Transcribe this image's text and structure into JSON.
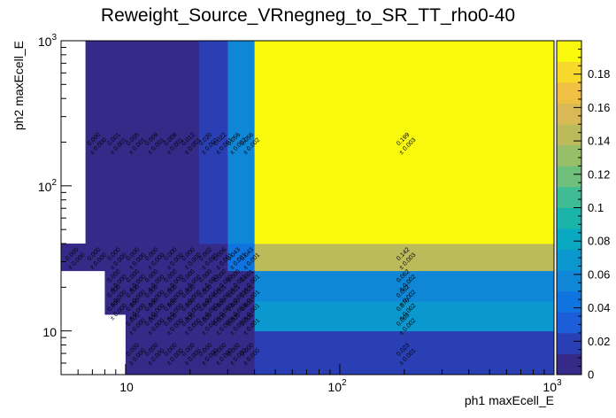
{
  "chart_data": {
    "type": "heatmap",
    "title": "Reweight_Source_VRnegneg_to_SR_TT_rho0-40",
    "xlabel": "ph1 maxEcell_E",
    "ylabel": "ph2 maxEcell_E",
    "x_scale": "log",
    "y_scale": "log",
    "xlim": [
      5,
      1000
    ],
    "ylim": [
      5,
      1000
    ],
    "x_tick_labels": [
      "10",
      "10²",
      "10³"
    ],
    "y_tick_labels": [
      "10",
      "10²",
      "10³"
    ],
    "x_edges": [
      5,
      6.5,
      8,
      10,
      12,
      15,
      18,
      22,
      26,
      30,
      35,
      40,
      1000
    ],
    "y_edges": [
      5,
      10,
      13,
      16,
      20,
      26,
      40,
      1000
    ],
    "z_range": [
      0,
      0.2
    ],
    "colorbar_ticks": [
      "0",
      "0.02",
      "0.04",
      "0.06",
      "0.08",
      "0.1",
      "0.12",
      "0.14",
      "0.16",
      "0.18"
    ],
    "cells": [
      {
        "ix": 3,
        "iy": 0,
        "value": 0.0,
        "error": 0.0,
        "label": "0.000",
        "err_label": "± 0.000"
      },
      {
        "ix": 4,
        "iy": 0,
        "value": 0.0,
        "error": 0.0,
        "label": "0.000",
        "err_label": "± 0.000"
      },
      {
        "ix": 5,
        "iy": 0,
        "value": 0.0,
        "error": 0.0,
        "label": "0.000",
        "err_label": "± 0.000"
      },
      {
        "ix": 6,
        "iy": 0,
        "value": 0.0,
        "error": 0.0,
        "label": "0.000",
        "err_label": "± 0.000"
      },
      {
        "ix": 7,
        "iy": 0,
        "value": 0.0,
        "error": 0.0,
        "label": "0.000",
        "err_label": "± 0.000"
      },
      {
        "ix": 8,
        "iy": 0,
        "value": 0.0,
        "error": 0.0,
        "label": "0.000",
        "err_label": "± 0.000"
      },
      {
        "ix": 9,
        "iy": 0,
        "value": 0.0,
        "error": 0.0,
        "label": "0.000",
        "err_label": "± 0.000"
      },
      {
        "ix": 10,
        "iy": 0,
        "value": 0.0,
        "error": 0.0,
        "label": "0.000",
        "err_label": "± 0.000"
      },
      {
        "ix": 11,
        "iy": 0,
        "value": 0.023,
        "error": 0.001,
        "label": "0.023",
        "err_label": "± 0.001"
      },
      {
        "ix": 3,
        "iy": 1,
        "value": 0.0,
        "error": 0.0,
        "label": "0.000",
        "err_label": "± 0.000"
      },
      {
        "ix": 4,
        "iy": 1,
        "value": 0.0,
        "error": 0.0,
        "label": "0.000",
        "err_label": "± 0.000"
      },
      {
        "ix": 5,
        "iy": 1,
        "value": 0.0,
        "error": 0.0,
        "label": "0.000",
        "err_label": "± 0.000"
      },
      {
        "ix": 6,
        "iy": 1,
        "value": 0.0,
        "error": 0.0,
        "label": "0.000",
        "err_label": "± 0.000"
      },
      {
        "ix": 7,
        "iy": 1,
        "value": 0.0,
        "error": 0.0,
        "label": "0.000",
        "err_label": "± 0.000"
      },
      {
        "ix": 8,
        "iy": 1,
        "value": 0.0,
        "error": 0.0,
        "label": "0.000",
        "err_label": "± 0.000"
      },
      {
        "ix": 9,
        "iy": 1,
        "value": 0.0,
        "error": 0.0,
        "label": "0.000",
        "err_label": "± 0.000"
      },
      {
        "ix": 10,
        "iy": 1,
        "value": 0.0,
        "error": 0.001,
        "label": "0.000",
        "err_label": "± 0.001"
      },
      {
        "ix": 11,
        "iy": 1,
        "value": 0.063,
        "error": 0.002,
        "label": "0.063",
        "err_label": "± 0.002"
      },
      {
        "ix": 2,
        "iy": 2,
        "value": 0.0,
        "error": 0.0,
        "label": "0.000",
        "err_label": "± 0.000"
      },
      {
        "ix": 3,
        "iy": 2,
        "value": 0.0,
        "error": 0.0,
        "label": "0.000",
        "err_label": "± 0.000"
      },
      {
        "ix": 4,
        "iy": 2,
        "value": 0.0,
        "error": 0.0,
        "label": "0.000",
        "err_label": "± 0.000"
      },
      {
        "ix": 5,
        "iy": 2,
        "value": 0.0,
        "error": 0.0,
        "label": "0.000",
        "err_label": "± 0.000"
      },
      {
        "ix": 6,
        "iy": 2,
        "value": 0.0,
        "error": 0.0,
        "label": "0.000",
        "err_label": "± 0.000"
      },
      {
        "ix": 7,
        "iy": 2,
        "value": 0.0,
        "error": 0.0,
        "label": "0.000",
        "err_label": "± 0.000"
      },
      {
        "ix": 8,
        "iy": 2,
        "value": 0.0,
        "error": 0.0,
        "label": "0.000",
        "err_label": "± 0.000"
      },
      {
        "ix": 9,
        "iy": 2,
        "value": 0.0,
        "error": 0.001,
        "label": "0.000",
        "err_label": "± 0.001"
      },
      {
        "ix": 10,
        "iy": 2,
        "value": 0.001,
        "error": 0.001,
        "label": "0.001",
        "err_label": "± 0.001"
      },
      {
        "ix": 11,
        "iy": 2,
        "value": 0.07,
        "error": 0.002,
        "label": "0.070",
        "err_label": "± 0.002"
      },
      {
        "ix": 2,
        "iy": 3,
        "value": 0.0,
        "error": 0.0,
        "label": "0.000",
        "err_label": "± 0.000"
      },
      {
        "ix": 3,
        "iy": 3,
        "value": 0.0,
        "error": 0.0,
        "label": "0.000",
        "err_label": "± 0.000"
      },
      {
        "ix": 4,
        "iy": 3,
        "value": 0.0,
        "error": 0.0,
        "label": "0.000",
        "err_label": "± 0.000"
      },
      {
        "ix": 5,
        "iy": 3,
        "value": 0.0,
        "error": 0.0,
        "label": "0.000",
        "err_label": "± 0.000"
      },
      {
        "ix": 6,
        "iy": 3,
        "value": 0.0,
        "error": 0.0,
        "label": "0.000",
        "err_label": "± 0.000"
      },
      {
        "ix": 7,
        "iy": 3,
        "value": 0.0,
        "error": 0.0,
        "label": "0.000",
        "err_label": "± 0.000"
      },
      {
        "ix": 8,
        "iy": 3,
        "value": 0.001,
        "error": 0.001,
        "label": "0.001",
        "err_label": "± 0.001"
      },
      {
        "ix": 9,
        "iy": 3,
        "value": 0.001,
        "error": 0.001,
        "label": "0.001",
        "err_label": "± 0.001"
      },
      {
        "ix": 10,
        "iy": 3,
        "value": 0.001,
        "error": 0.001,
        "label": "0.001",
        "err_label": "± 0.001"
      },
      {
        "ix": 11,
        "iy": 3,
        "value": 0.062,
        "error": 0.002,
        "label": "0.062",
        "err_label": "± 0.002"
      },
      {
        "ix": 2,
        "iy": 4,
        "value": 0.0,
        "error": 0.0,
        "label": "0.000",
        "err_label": "± 0.000"
      },
      {
        "ix": 3,
        "iy": 4,
        "value": 0.0,
        "error": 0.0,
        "label": "0.000",
        "err_label": "± 0.000"
      },
      {
        "ix": 4,
        "iy": 4,
        "value": 0.0,
        "error": 0.0,
        "label": "0.000",
        "err_label": "± 0.000"
      },
      {
        "ix": 5,
        "iy": 4,
        "value": 0.0,
        "error": 0.0,
        "label": "0.000",
        "err_label": "± 0.000"
      },
      {
        "ix": 6,
        "iy": 4,
        "value": 0.0,
        "error": 0.0,
        "label": "0.000",
        "err_label": "± 0.000"
      },
      {
        "ix": 7,
        "iy": 4,
        "value": 0.0,
        "error": 0.0,
        "label": "0.000",
        "err_label": "± 0.000"
      },
      {
        "ix": 8,
        "iy": 4,
        "value": 0.0,
        "error": 0.0,
        "label": "0.000",
        "err_label": "± 0.000"
      },
      {
        "ix": 9,
        "iy": 4,
        "value": 0.0,
        "error": 0.001,
        "label": "0.000",
        "err_label": "± 0.001"
      },
      {
        "ix": 10,
        "iy": 4,
        "value": 0.001,
        "error": 0.001,
        "label": "0.001",
        "err_label": "± 0.001"
      },
      {
        "ix": 11,
        "iy": 4,
        "value": 0.062,
        "error": 0.002,
        "label": "0.062",
        "err_label": "± 0.002"
      },
      {
        "ix": 0,
        "iy": 5,
        "value": 0.0,
        "error": 0.0,
        "label": "0.000",
        "err_label": "± 0.000"
      },
      {
        "ix": 1,
        "iy": 5,
        "value": 0.0,
        "error": 0.0,
        "label": "0.000",
        "err_label": "± 0.000"
      },
      {
        "ix": 2,
        "iy": 5,
        "value": 0.0,
        "error": 0.0,
        "label": "0.000",
        "err_label": "± 0.000"
      },
      {
        "ix": 3,
        "iy": 5,
        "value": 0.0,
        "error": 0.0,
        "label": "0.000",
        "err_label": "± 0.000"
      },
      {
        "ix": 4,
        "iy": 5,
        "value": 0.0,
        "error": 0.0,
        "label": "0.000",
        "err_label": "± 0.000"
      },
      {
        "ix": 5,
        "iy": 5,
        "value": 0.0,
        "error": 0.0,
        "label": "0.000",
        "err_label": "± 0.000"
      },
      {
        "ix": 6,
        "iy": 5,
        "value": 0.0,
        "error": 0.0,
        "label": "0.000",
        "err_label": "± 0.000"
      },
      {
        "ix": 7,
        "iy": 5,
        "value": 0.002,
        "error": 0.001,
        "label": "0.002",
        "err_label": "± 0.001"
      },
      {
        "ix": 8,
        "iy": 5,
        "value": 0.006,
        "error": 0.001,
        "label": "0.006",
        "err_label": "± 0.001"
      },
      {
        "ix": 9,
        "iy": 5,
        "value": 0.043,
        "error": 0.001,
        "label": "0.043",
        "err_label": "± 0.001"
      },
      {
        "ix": 10,
        "iy": 5,
        "value": 0.043,
        "error": 0.001,
        "label": "0.043",
        "err_label": "± 0.001"
      },
      {
        "ix": 11,
        "iy": 5,
        "value": 0.142,
        "error": 0.003,
        "label": "0.142",
        "err_label": "± 0.003"
      },
      {
        "ix": 1,
        "iy": 6,
        "value": 0.0,
        "error": 0.0,
        "label": "0.000",
        "err_label": "± 0.000"
      },
      {
        "ix": 2,
        "iy": 6,
        "value": 0.001,
        "error": 0.001,
        "label": "0.001",
        "err_label": "± 0.001"
      },
      {
        "ix": 3,
        "iy": 6,
        "value": 0.005,
        "error": 0.001,
        "label": "0.005",
        "err_label": "± 0.001"
      },
      {
        "ix": 4,
        "iy": 6,
        "value": 0.009,
        "error": 0.001,
        "label": "0.009",
        "err_label": "± 0.001"
      },
      {
        "ix": 5,
        "iy": 6,
        "value": 0.009,
        "error": 0.001,
        "label": "0.009",
        "err_label": "± 0.001"
      },
      {
        "ix": 6,
        "iy": 6,
        "value": 0.012,
        "error": 0.001,
        "label": "0.012",
        "err_label": "± 0.001"
      },
      {
        "ix": 7,
        "iy": 6,
        "value": 0.02,
        "error": 0.001,
        "label": "0.020",
        "err_label": "± 0.001"
      },
      {
        "ix": 8,
        "iy": 6,
        "value": 0.022,
        "error": 0.001,
        "label": "0.022",
        "err_label": "± 0.001"
      },
      {
        "ix": 9,
        "iy": 6,
        "value": 0.056,
        "error": 0.002,
        "label": "0.056",
        "err_label": "± 0.002"
      },
      {
        "ix": 10,
        "iy": 6,
        "value": 0.056,
        "error": 0.002,
        "label": "0.056",
        "err_label": "± 0.002"
      },
      {
        "ix": 11,
        "iy": 6,
        "value": 0.199,
        "error": 0.003,
        "label": "0.199",
        "err_label": "± 0.003"
      }
    ],
    "colormap": [
      "#352a87",
      "#2b3fb5",
      "#1c5ed9",
      "#0f74e0",
      "#1086d6",
      "#0b98ce",
      "#09a8c1",
      "#1ab4a8",
      "#3fbc93",
      "#6ebe7c",
      "#97be69",
      "#bcbb5b",
      "#d8b955",
      "#f0c043",
      "#f8d82b",
      "#f9f90e"
    ]
  }
}
